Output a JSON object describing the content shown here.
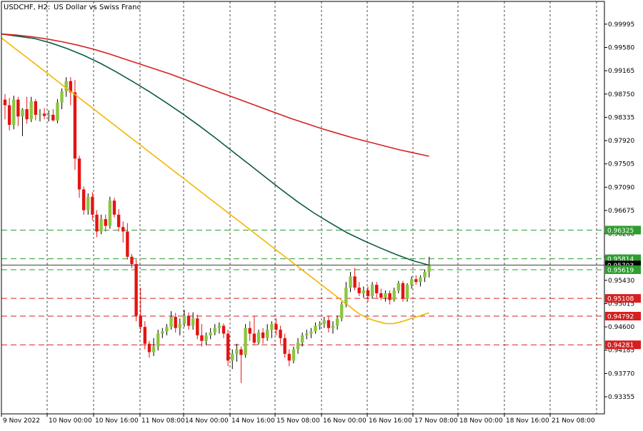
{
  "header": {
    "symbol_timeframe": "USDCHF, H2:",
    "description": "US Dollar vs Swiss Franc"
  },
  "colors": {
    "background": "#ffffff",
    "axis": "#000000",
    "grid": "#000000",
    "bull_candle": "#8cc63f",
    "bear_candle": "#e31414",
    "ma_fast": "#f2b600",
    "ma_mid": "#0e5a4a",
    "ma_slow": "#d62020",
    "level_green": "#2e9e2e",
    "level_red": "#d62020",
    "bid_line": "#000000"
  },
  "chart_data": {
    "type": "candlestick",
    "title": "USDCHF, H2: US Dollar vs Swiss Franc",
    "ylim": [
      0.9305,
      1.004
    ],
    "y_ticks": [
      "0.99995",
      "0.99580",
      "0.99165",
      "0.98750",
      "0.98335",
      "0.97920",
      "0.97505",
      "0.97090",
      "0.96675",
      "0.96260",
      "0.95845",
      "0.95430",
      "0.95015",
      "0.94600",
      "0.94185",
      "0.93770",
      "0.93355"
    ],
    "x_ticks": [
      "9 Nov 2022",
      "10 Nov 00:00",
      "10 Nov 16:00",
      "11 Nov 08:00",
      "14 Nov 00:00",
      "14 Nov 16:00",
      "15 Nov 08:00",
      "16 Nov 00:00",
      "16 Nov 16:00",
      "17 Nov 08:00",
      "18 Nov 00:00",
      "18 Nov 16:00",
      "21 Nov 08:00"
    ],
    "price_labels": [
      {
        "value": 0.96325,
        "text": "0.96325",
        "kind": "green"
      },
      {
        "value": 0.95814,
        "text": "0.95814",
        "kind": "green"
      },
      {
        "value": 0.95703,
        "text": "0.95703",
        "kind": "bid"
      },
      {
        "value": 0.95619,
        "text": "0.95619",
        "kind": "green"
      },
      {
        "value": 0.95108,
        "text": "0.95108",
        "kind": "red"
      },
      {
        "value": 0.94792,
        "text": "0.94792",
        "kind": "red"
      },
      {
        "value": 0.94281,
        "text": "0.94281",
        "kind": "red"
      }
    ],
    "candles": [
      {
        "o": 0.9865,
        "h": 0.9875,
        "l": 0.983,
        "c": 0.9855
      },
      {
        "o": 0.9855,
        "h": 0.9868,
        "l": 0.981,
        "c": 0.982
      },
      {
        "o": 0.982,
        "h": 0.9872,
        "l": 0.9812,
        "c": 0.9865
      },
      {
        "o": 0.9865,
        "h": 0.987,
        "l": 0.9818,
        "c": 0.9835
      },
      {
        "o": 0.9835,
        "h": 0.985,
        "l": 0.98,
        "c": 0.9848
      },
      {
        "o": 0.9848,
        "h": 0.987,
        "l": 0.9822,
        "c": 0.983
      },
      {
        "o": 0.983,
        "h": 0.987,
        "l": 0.9825,
        "c": 0.9862
      },
      {
        "o": 0.9862,
        "h": 0.9866,
        "l": 0.9828,
        "c": 0.9838
      },
      {
        "o": 0.9838,
        "h": 0.9848,
        "l": 0.9826,
        "c": 0.984
      },
      {
        "o": 0.984,
        "h": 0.985,
        "l": 0.983,
        "c": 0.9836
      },
      {
        "o": 0.9836,
        "h": 0.9846,
        "l": 0.9826,
        "c": 0.9838
      },
      {
        "o": 0.9838,
        "h": 0.9848,
        "l": 0.9826,
        "c": 0.9828
      },
      {
        "o": 0.9828,
        "h": 0.9866,
        "l": 0.9823,
        "c": 0.986
      },
      {
        "o": 0.986,
        "h": 0.9885,
        "l": 0.9848,
        "c": 0.988
      },
      {
        "o": 0.988,
        "h": 0.9905,
        "l": 0.987,
        "c": 0.9898
      },
      {
        "o": 0.9898,
        "h": 0.9905,
        "l": 0.9855,
        "c": 0.9878
      },
      {
        "o": 0.9878,
        "h": 0.99,
        "l": 0.974,
        "c": 0.976
      },
      {
        "o": 0.976,
        "h": 0.9765,
        "l": 0.969,
        "c": 0.9705
      },
      {
        "o": 0.9705,
        "h": 0.971,
        "l": 0.966,
        "c": 0.9668
      },
      {
        "o": 0.9668,
        "h": 0.9698,
        "l": 0.966,
        "c": 0.9692
      },
      {
        "o": 0.9692,
        "h": 0.97,
        "l": 0.965,
        "c": 0.966
      },
      {
        "o": 0.966,
        "h": 0.9668,
        "l": 0.962,
        "c": 0.963
      },
      {
        "o": 0.963,
        "h": 0.966,
        "l": 0.9625,
        "c": 0.9652
      },
      {
        "o": 0.9652,
        "h": 0.966,
        "l": 0.963,
        "c": 0.964
      },
      {
        "o": 0.964,
        "h": 0.9692,
        "l": 0.9635,
        "c": 0.9685
      },
      {
        "o": 0.9685,
        "h": 0.969,
        "l": 0.9655,
        "c": 0.966
      },
      {
        "o": 0.966,
        "h": 0.967,
        "l": 0.963,
        "c": 0.9638
      },
      {
        "o": 0.9638,
        "h": 0.9648,
        "l": 0.961,
        "c": 0.963
      },
      {
        "o": 0.963,
        "h": 0.9645,
        "l": 0.958,
        "c": 0.9585
      },
      {
        "o": 0.9585,
        "h": 0.959,
        "l": 0.9565,
        "c": 0.9572
      },
      {
        "o": 0.9572,
        "h": 0.958,
        "l": 0.947,
        "c": 0.948
      },
      {
        "o": 0.948,
        "h": 0.953,
        "l": 0.945,
        "c": 0.946
      },
      {
        "o": 0.946,
        "h": 0.947,
        "l": 0.942,
        "c": 0.943
      },
      {
        "o": 0.943,
        "h": 0.9435,
        "l": 0.9405,
        "c": 0.9415
      },
      {
        "o": 0.9415,
        "h": 0.944,
        "l": 0.9408,
        "c": 0.9425
      },
      {
        "o": 0.9425,
        "h": 0.9455,
        "l": 0.9418,
        "c": 0.9448
      },
      {
        "o": 0.9448,
        "h": 0.9458,
        "l": 0.944,
        "c": 0.9452
      },
      {
        "o": 0.9452,
        "h": 0.9465,
        "l": 0.9445,
        "c": 0.946
      },
      {
        "o": 0.946,
        "h": 0.9488,
        "l": 0.9455,
        "c": 0.9478
      },
      {
        "o": 0.9478,
        "h": 0.9485,
        "l": 0.945,
        "c": 0.9458
      },
      {
        "o": 0.9458,
        "h": 0.9475,
        "l": 0.9445,
        "c": 0.9465
      },
      {
        "o": 0.9465,
        "h": 0.949,
        "l": 0.946,
        "c": 0.948
      },
      {
        "o": 0.948,
        "h": 0.9486,
        "l": 0.9455,
        "c": 0.9462
      },
      {
        "o": 0.9462,
        "h": 0.9486,
        "l": 0.9455,
        "c": 0.9475
      },
      {
        "o": 0.9475,
        "h": 0.9482,
        "l": 0.9438,
        "c": 0.9445
      },
      {
        "o": 0.9445,
        "h": 0.9465,
        "l": 0.9425,
        "c": 0.9435
      },
      {
        "o": 0.9435,
        "h": 0.945,
        "l": 0.9428,
        "c": 0.9445
      },
      {
        "o": 0.9445,
        "h": 0.9458,
        "l": 0.9438,
        "c": 0.945
      },
      {
        "o": 0.945,
        "h": 0.9465,
        "l": 0.9445,
        "c": 0.9458
      },
      {
        "o": 0.9458,
        "h": 0.9468,
        "l": 0.9448,
        "c": 0.9462
      },
      {
        "o": 0.9462,
        "h": 0.9466,
        "l": 0.944,
        "c": 0.9448
      },
      {
        "o": 0.9448,
        "h": 0.9455,
        "l": 0.939,
        "c": 0.94
      },
      {
        "o": 0.94,
        "h": 0.942,
        "l": 0.9385,
        "c": 0.9412
      },
      {
        "o": 0.9412,
        "h": 0.943,
        "l": 0.9398,
        "c": 0.942
      },
      {
        "o": 0.942,
        "h": 0.9425,
        "l": 0.936,
        "c": 0.941
      },
      {
        "o": 0.941,
        "h": 0.9465,
        "l": 0.9405,
        "c": 0.9458
      },
      {
        "o": 0.9458,
        "h": 0.947,
        "l": 0.9435,
        "c": 0.9448
      },
      {
        "o": 0.9448,
        "h": 0.948,
        "l": 0.9428,
        "c": 0.9432
      },
      {
        "o": 0.9432,
        "h": 0.9455,
        "l": 0.9428,
        "c": 0.945
      },
      {
        "o": 0.945,
        "h": 0.9458,
        "l": 0.943,
        "c": 0.944
      },
      {
        "o": 0.944,
        "h": 0.9465,
        "l": 0.9435,
        "c": 0.9455
      },
      {
        "o": 0.9455,
        "h": 0.947,
        "l": 0.944,
        "c": 0.9465
      },
      {
        "o": 0.9465,
        "h": 0.9475,
        "l": 0.9445,
        "c": 0.9455
      },
      {
        "o": 0.9455,
        "h": 0.9462,
        "l": 0.943,
        "c": 0.944
      },
      {
        "o": 0.944,
        "h": 0.9448,
        "l": 0.9405,
        "c": 0.9412
      },
      {
        "o": 0.9412,
        "h": 0.942,
        "l": 0.939,
        "c": 0.94
      },
      {
        "o": 0.94,
        "h": 0.9425,
        "l": 0.9395,
        "c": 0.942
      },
      {
        "o": 0.942,
        "h": 0.944,
        "l": 0.9412,
        "c": 0.9432
      },
      {
        "o": 0.9432,
        "h": 0.945,
        "l": 0.9425,
        "c": 0.9445
      },
      {
        "o": 0.9445,
        "h": 0.9455,
        "l": 0.9438,
        "c": 0.9448
      },
      {
        "o": 0.9448,
        "h": 0.9458,
        "l": 0.944,
        "c": 0.9452
      },
      {
        "o": 0.9452,
        "h": 0.9468,
        "l": 0.9448,
        "c": 0.9462
      },
      {
        "o": 0.9462,
        "h": 0.947,
        "l": 0.9455,
        "c": 0.9465
      },
      {
        "o": 0.9465,
        "h": 0.9478,
        "l": 0.9458,
        "c": 0.9472
      },
      {
        "o": 0.9472,
        "h": 0.948,
        "l": 0.945,
        "c": 0.9458
      },
      {
        "o": 0.9458,
        "h": 0.947,
        "l": 0.9448,
        "c": 0.9462
      },
      {
        "o": 0.9462,
        "h": 0.948,
        "l": 0.9455,
        "c": 0.9475
      },
      {
        "o": 0.9475,
        "h": 0.9505,
        "l": 0.947,
        "c": 0.95
      },
      {
        "o": 0.95,
        "h": 0.954,
        "l": 0.9495,
        "c": 0.953
      },
      {
        "o": 0.953,
        "h": 0.9558,
        "l": 0.9522,
        "c": 0.955
      },
      {
        "o": 0.955,
        "h": 0.9565,
        "l": 0.9525,
        "c": 0.953
      },
      {
        "o": 0.953,
        "h": 0.954,
        "l": 0.9515,
        "c": 0.952
      },
      {
        "o": 0.952,
        "h": 0.9532,
        "l": 0.9512,
        "c": 0.9525
      },
      {
        "o": 0.9525,
        "h": 0.9532,
        "l": 0.9505,
        "c": 0.9515
      },
      {
        "o": 0.9515,
        "h": 0.954,
        "l": 0.951,
        "c": 0.9535
      },
      {
        "o": 0.9535,
        "h": 0.954,
        "l": 0.9512,
        "c": 0.952
      },
      {
        "o": 0.952,
        "h": 0.9528,
        "l": 0.9508,
        "c": 0.9512
      },
      {
        "o": 0.9512,
        "h": 0.9525,
        "l": 0.9505,
        "c": 0.952
      },
      {
        "o": 0.952,
        "h": 0.9525,
        "l": 0.95,
        "c": 0.9508
      },
      {
        "o": 0.9508,
        "h": 0.953,
        "l": 0.9505,
        "c": 0.9525
      },
      {
        "o": 0.9525,
        "h": 0.9542,
        "l": 0.952,
        "c": 0.9538
      },
      {
        "o": 0.9538,
        "h": 0.9542,
        "l": 0.9505,
        "c": 0.951
      },
      {
        "o": 0.951,
        "h": 0.9538,
        "l": 0.9505,
        "c": 0.9535
      },
      {
        "o": 0.9535,
        "h": 0.955,
        "l": 0.9528,
        "c": 0.9545
      },
      {
        "o": 0.9545,
        "h": 0.9552,
        "l": 0.9535,
        "c": 0.954
      },
      {
        "o": 0.954,
        "h": 0.9552,
        "l": 0.9532,
        "c": 0.9548
      },
      {
        "o": 0.9548,
        "h": 0.9562,
        "l": 0.954,
        "c": 0.9558
      },
      {
        "o": 0.9558,
        "h": 0.9585,
        "l": 0.9548,
        "c": 0.957
      }
    ],
    "series": [
      {
        "key": "ma_fast",
        "values": [
          0.9975,
          0.9963,
          0.9951,
          0.9939,
          0.9927,
          0.9915,
          0.9903,
          0.9891,
          0.9879,
          0.9867,
          0.9855,
          0.9843,
          0.9831,
          0.9819,
          0.9807,
          0.9795,
          0.9783,
          0.9771,
          0.9759,
          0.9747,
          0.9735,
          0.9723,
          0.9711,
          0.9699,
          0.9687,
          0.9675,
          0.9663,
          0.9651,
          0.9639,
          0.9627,
          0.9615,
          0.9603,
          0.9591,
          0.9579,
          0.9567,
          0.9555,
          0.9543,
          0.9531,
          0.9519,
          0.9507,
          0.9495,
          0.9483,
          0.9475,
          0.947,
          0.9466,
          0.9466,
          0.947,
          0.9475,
          0.948,
          0.9485
        ]
      },
      {
        "key": "ma_mid",
        "values": [
          0.9982,
          0.9978,
          0.9974,
          0.9966,
          0.9956,
          0.9944,
          0.993,
          0.9914,
          0.9897,
          0.9879,
          0.986,
          0.984,
          0.9819,
          0.9797,
          0.9774,
          0.9751,
          0.9728,
          0.9705,
          0.9683,
          0.9663,
          0.9645,
          0.9628,
          0.9614,
          0.9601,
          0.9589,
          0.9578,
          0.957
        ]
      },
      {
        "key": "ma_slow",
        "values": [
          0.9982,
          0.998,
          0.9977,
          0.9973,
          0.9968,
          0.9962,
          0.9955,
          0.9947,
          0.9938,
          0.9929,
          0.992,
          0.9911,
          0.9901,
          0.9891,
          0.9881,
          0.9871,
          0.9861,
          0.9851,
          0.9841,
          0.9831,
          0.9822,
          0.9813,
          0.9805,
          0.9797,
          0.979,
          0.9783,
          0.9776,
          0.977,
          0.9764
        ]
      }
    ]
  }
}
